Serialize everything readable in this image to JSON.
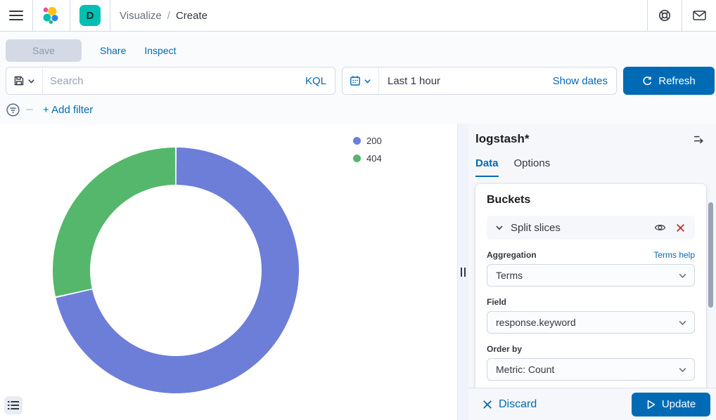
{
  "header": {
    "breadcrumb": {
      "section": "Visualize",
      "separator": "/",
      "current": "Create"
    },
    "space_badge": "D"
  },
  "toolbar": {
    "save_label": "Save",
    "share_label": "Share",
    "inspect_label": "Inspect"
  },
  "query_bar": {
    "search_placeholder": "Search",
    "language_label": "KQL",
    "time_value": "Last 1 hour",
    "show_dates_label": "Show dates",
    "refresh_label": "Refresh"
  },
  "filter_bar": {
    "add_filter_label": "+ Add filter"
  },
  "chart_data": {
    "type": "donut",
    "slices": [
      {
        "label": "200",
        "share_pct": 71.5,
        "color": "#6D7ED9"
      },
      {
        "label": "404",
        "share_pct": 28.5,
        "color": "#55B76B"
      }
    ],
    "legend_position": "right",
    "start_angle_deg": 0,
    "direction": "clockwise",
    "inner_radius_ratio": 0.7
  },
  "side_panel": {
    "index_pattern": "logstash*",
    "tabs": {
      "data": "Data",
      "options": "Options"
    },
    "buckets": {
      "heading": "Buckets",
      "accordion_label": "Split slices",
      "aggregation_label": "Aggregation",
      "aggregation_help": "Terms help",
      "aggregation_value": "Terms",
      "field_label": "Field",
      "field_value": "response.keyword",
      "order_by_label": "Order by",
      "order_by_value": "Metric: Count"
    }
  },
  "footer": {
    "discard_label": "Discard",
    "update_label": "Update"
  },
  "colors": {
    "primary": "#006BB4",
    "danger": "#BD271E",
    "badge": "#00BFB3",
    "text": "#343741",
    "subtle_text": "#69707D",
    "border": "#D3DAE6",
    "panel_bg": "#F5F7FA"
  }
}
